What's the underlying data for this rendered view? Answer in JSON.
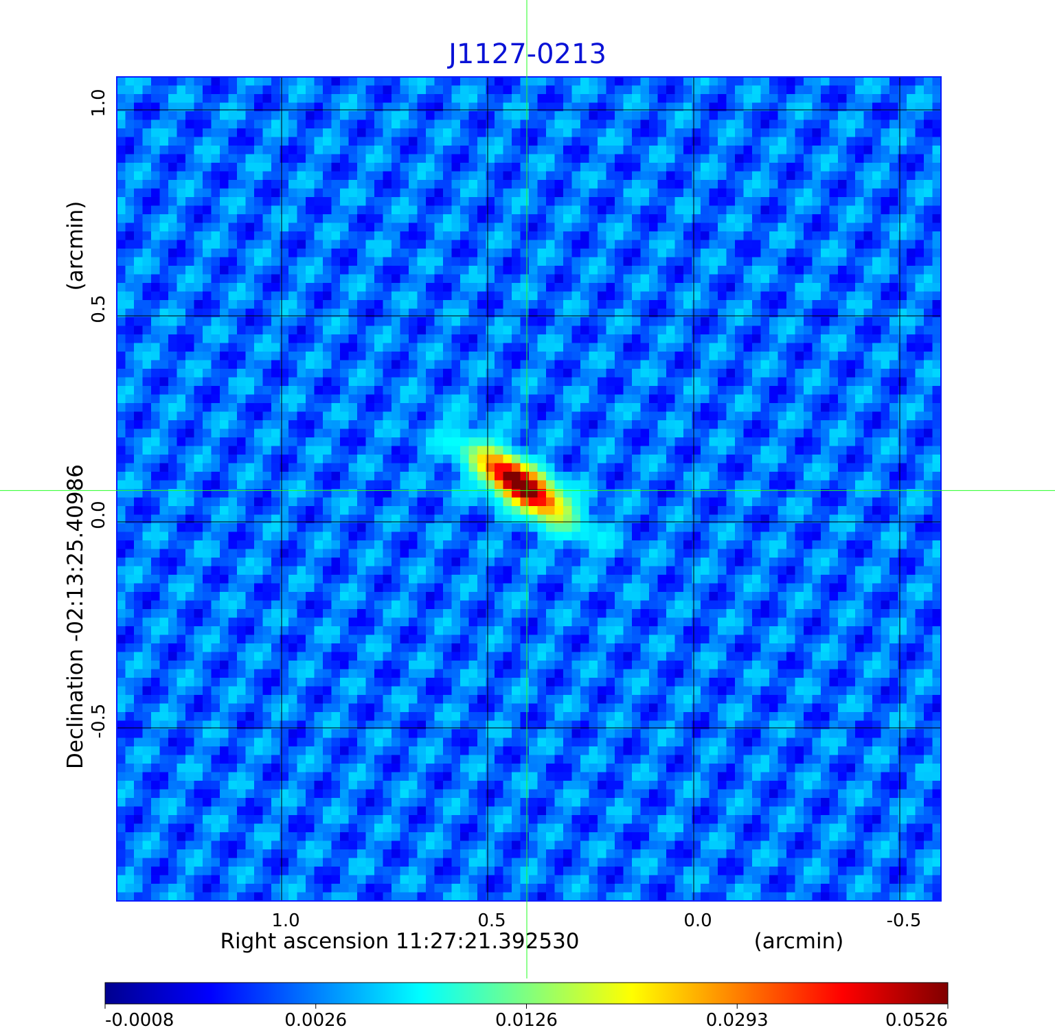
{
  "chart_data": {
    "type": "heatmap",
    "title": "J1127-0213",
    "xlabel": "Right ascension  11:27:21.392530",
    "x_unit": "(arcmin)",
    "ylabel": "Declination  -02:13:25.40986",
    "y_unit": "(arcmin)",
    "x_ticks": [
      {
        "value": 1.0,
        "label": "1.0"
      },
      {
        "value": 0.5,
        "label": "0.5"
      },
      {
        "value": 0.0,
        "label": "0.0"
      },
      {
        "value": -0.5,
        "label": "-0.5"
      }
    ],
    "y_ticks": [
      {
        "value": 1.0,
        "label": "1.0"
      },
      {
        "value": 0.5,
        "label": "0.5"
      },
      {
        "value": 0.0,
        "label": "0.0"
      },
      {
        "value": -0.5,
        "label": "-0.5"
      }
    ],
    "xlim": [
      1.4,
      -0.6
    ],
    "ylim": [
      -0.92,
      1.08
    ],
    "x_reversed": true,
    "grid": true,
    "crosshair": {
      "x": 0.405,
      "y": 0.076
    },
    "source": {
      "x": 0.42,
      "y": 0.09,
      "peak": 0.0526
    },
    "background_level": 0.0012,
    "colorbar": {
      "colormap": "jet",
      "scale": "nonlinear",
      "ticks": [
        {
          "value": -0.0008,
          "label": "-0.0008"
        },
        {
          "value": 0.0026,
          "label": "0.0026"
        },
        {
          "value": 0.0126,
          "label": "0.0126"
        },
        {
          "value": 0.0293,
          "label": "0.0293"
        },
        {
          "value": 0.0526,
          "label": "0.0526"
        }
      ]
    },
    "colors": {
      "title": "#0a12d6",
      "grid": "#000000",
      "crosshair": "#22ff22",
      "frame": "#0a1aff"
    }
  }
}
